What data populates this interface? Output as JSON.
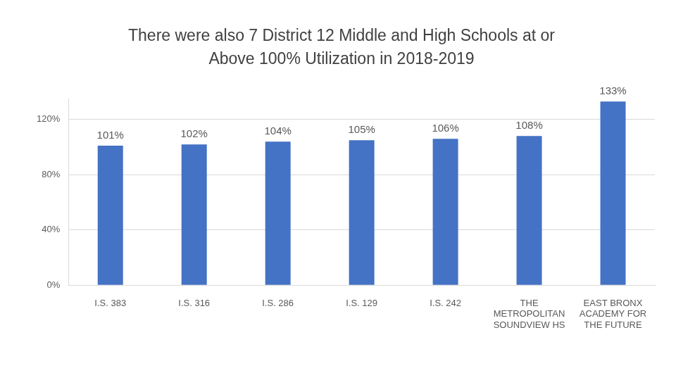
{
  "chart_data": {
    "type": "bar",
    "title": [
      "There were also 7 District 12 Middle and High Schools at or",
      "Above 100% Utilization in 2018-2019"
    ],
    "categories": [
      "I.S. 383",
      "I.S. 316",
      "I.S. 286",
      "I.S. 129",
      "I.S. 242",
      [
        "THE",
        "METROPOLITAN",
        "SOUNDVIEW HS"
      ],
      [
        "EAST BRONX",
        "ACADEMY FOR",
        "THE FUTURE"
      ]
    ],
    "values": [
      101,
      102,
      104,
      105,
      106,
      108,
      133
    ],
    "value_labels": [
      "101%",
      "102%",
      "104%",
      "105%",
      "106%",
      "108%",
      "133%"
    ],
    "data_labels": true,
    "color": "#4472c4",
    "ylim": [
      0,
      135
    ],
    "yticks": [
      {
        "value": 0,
        "label": "0%"
      },
      {
        "value": 40,
        "label": "40%"
      },
      {
        "value": 80,
        "label": "80%"
      },
      {
        "value": 120,
        "label": "120%"
      }
    ],
    "grid": true
  }
}
